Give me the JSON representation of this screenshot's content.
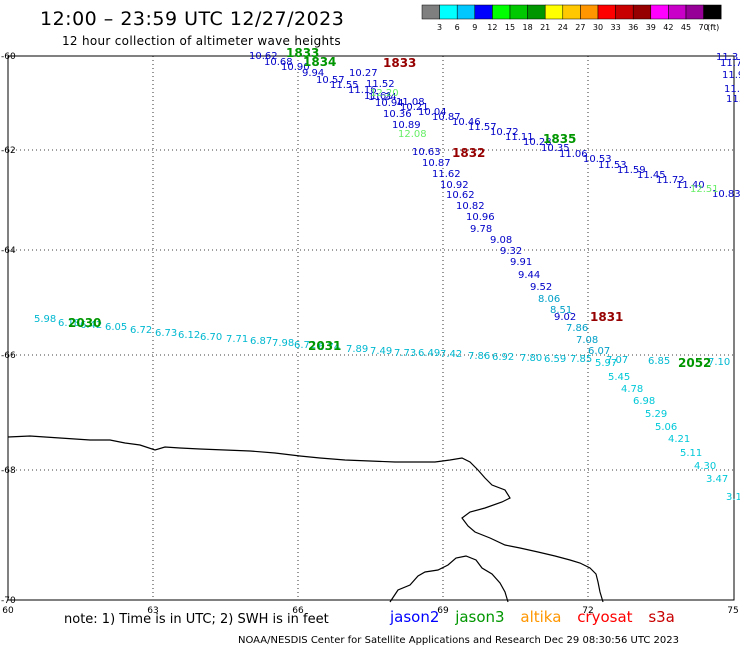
{
  "header": {
    "title": "12:00 – 23:59 UTC 12/27/2023",
    "subtitle": "12 hour collection of altimeter wave heights"
  },
  "colorbar": {
    "colors": [
      "#7f7f7f",
      "#00ffff",
      "#00c8ff",
      "#0000ff",
      "#00ff00",
      "#00c800",
      "#009600",
      "#ffff00",
      "#ffc800",
      "#ff9600",
      "#ff0000",
      "#c80000",
      "#960000",
      "#ff00ff",
      "#c800c8",
      "#960096",
      "#000000"
    ],
    "labels": [
      "3",
      "6",
      "9",
      "12",
      "15",
      "18",
      "21",
      "24",
      "27",
      "30",
      "33",
      "36",
      "39",
      "42",
      "45",
      "70",
      "(ft)"
    ]
  },
  "axes": {
    "lat_labels": [
      "-60",
      "-62",
      "-64",
      "-66",
      "-68",
      "-70"
    ],
    "lon_labels": [
      "60",
      "63",
      "66",
      "69",
      "72",
      "75"
    ]
  },
  "swaths": [
    {
      "values": [
        "10.62",
        "10.68",
        "10.90",
        "9.94",
        "10.57",
        "11.55",
        "11.16",
        "11.61",
        "10.94",
        "10.36",
        "10.89",
        "10.63",
        "10.87",
        "11.62",
        "10.92",
        "10.62",
        "10.82",
        "10.96",
        "9.78",
        "9.08",
        "9.32",
        "9.91",
        "9.44",
        "9.52",
        "8.06",
        "8.51",
        "9.02",
        "7.86",
        "7.08",
        "6.07",
        "5.97",
        "5.45",
        "4.78",
        "6.98",
        "5.29",
        "5.06",
        "4.21",
        "5.11",
        "4.30",
        "3.47",
        "3.1"
      ]
    },
    {
      "values": [
        "10.27",
        "11.52",
        "11.24",
        "11.08",
        "10.21",
        "10.04",
        "10.87",
        "10.46",
        "11.57",
        "10.72",
        "11.11",
        "10.28",
        "10.35",
        "11.06",
        "10.53",
        "11.53",
        "11.59",
        "11.45",
        "11.72",
        "11.40",
        "10.83"
      ]
    },
    {
      "values": [
        "5.98",
        "6.18",
        "6.42",
        "6.05",
        "6.72",
        "6.73",
        "6.12",
        "6.70",
        "7.71",
        "6.87",
        "7.98",
        "6.72",
        "6.74",
        "7.89",
        "7.49",
        "7.73",
        "6.49",
        "7.42",
        "7.86",
        "6.92",
        "7.80",
        "6.59",
        "7.85",
        "7.07",
        "6.85",
        "7.10"
      ]
    },
    {
      "values": [
        "11.3",
        "11.7",
        "11.9",
        "11.6",
        "11.2"
      ]
    },
    {
      "values": [
        "12.20",
        "12.08",
        "12.51"
      ]
    }
  ],
  "pass_labels": [
    "1833",
    "1834",
    "1833",
    "1832",
    "1835",
    "1831",
    "2030",
    "2031",
    "2052"
  ],
  "footer": {
    "note": "note:  1) Time is in UTC;  2) SWH is in feet",
    "satellites": [
      "jason2",
      "jason3",
      "altika",
      "cryosat",
      "s3a"
    ],
    "satellite_colors": [
      "#0000ff",
      "#009600",
      "#ff9600",
      "#ff0000",
      "#c80000"
    ],
    "credit": "NOAA/NESDIS Center for Satellite Applications and Research     Dec 29 08:30:56 UTC 2023"
  }
}
